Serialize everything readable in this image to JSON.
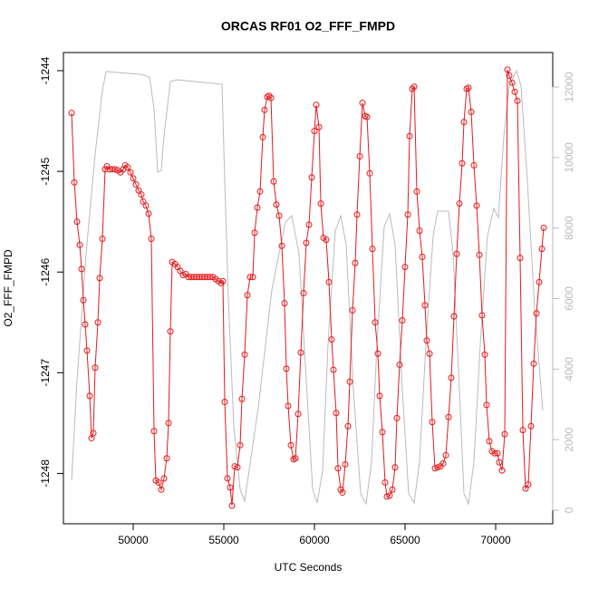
{
  "chart_data": {
    "type": "line",
    "title": "ORCAS RF01 O2_FFF_FMPD",
    "x_label": "UTC Seconds",
    "y_label": "O2_FFF_FMPD",
    "xlim": [
      46150,
      73150
    ],
    "ylim": [
      -1248.5,
      -1243.82
    ],
    "y2lim": [
      -386,
      12977
    ],
    "xticks": [
      50000,
      55000,
      60000,
      65000,
      70000
    ],
    "yticks": [
      -1248,
      -1247,
      -1246,
      -1245,
      -1244
    ],
    "y2ticks": [
      0,
      2000,
      4000,
      6000,
      8000,
      10000,
      12000
    ],
    "series": [
      {
        "color": "#bbbbbb",
        "axis": "y2",
        "markers": false,
        "x": [
          46600,
          46900,
          47400,
          47900,
          48300,
          48500,
          49150,
          50400,
          50900,
          51150,
          51350,
          51550,
          51700,
          52050,
          52400,
          53400,
          54900,
          55050,
          55250,
          55550,
          55900,
          56150,
          56900,
          57650,
          58400,
          58750,
          59150,
          59550,
          59900,
          60150,
          60450,
          60750,
          61150,
          61450,
          61750,
          62150,
          62550,
          62850,
          63150,
          63450,
          63850,
          64150,
          64450,
          64850,
          65200,
          65500,
          65800,
          66150,
          66550,
          66800,
          67400,
          67650,
          68000,
          68250,
          68500,
          68800,
          69150,
          69550,
          69900,
          70150,
          70450,
          70750,
          71150,
          71400,
          71750,
          72150,
          72600
        ],
        "values": [
          848,
          3675,
          7272,
          10098,
          11897,
          12437,
          12411,
          12360,
          12283,
          11383,
          9584,
          9636,
          10612,
          12154,
          12206,
          12154,
          12077,
          9327,
          5987,
          2390,
          591,
          257,
          2904,
          6244,
          8171,
          8351,
          7272,
          3675,
          591,
          206,
          1105,
          4702,
          7914,
          8351,
          7529,
          3418,
          463,
          180,
          1362,
          4702,
          8042,
          8403,
          7529,
          3418,
          463,
          206,
          1362,
          4702,
          7786,
          8480,
          8480,
          7272,
          3418,
          463,
          180,
          1362,
          4702,
          7786,
          8557,
          8300,
          10612,
          12026,
          12462,
          12026,
          9327,
          5730,
          2827
        ]
      },
      {
        "color": "#e41a1c",
        "axis": "y",
        "markers": true,
        "x": [
          46600,
          46750,
          46900,
          47050,
          47150,
          47250,
          47350,
          47450,
          47600,
          47700,
          47800,
          47900,
          48050,
          48150,
          48300,
          48450,
          48550,
          48700,
          48850,
          49000,
          49150,
          49300,
          49450,
          49550,
          49700,
          49850,
          50000,
          50150,
          50300,
          50450,
          50550,
          50700,
          50850,
          51000,
          51150,
          51250,
          51400,
          51550,
          51700,
          51850,
          51950,
          52050,
          52150,
          52300,
          52450,
          52600,
          52750,
          52900,
          53050,
          53200,
          53350,
          53500,
          53650,
          53800,
          53950,
          54100,
          54250,
          54400,
          54550,
          54700,
          54850,
          54950,
          55050,
          55200,
          55350,
          55450,
          55600,
          55750,
          55900,
          56000,
          56150,
          56300,
          56450,
          56600,
          56700,
          56850,
          57000,
          57150,
          57250,
          57400,
          57500,
          57600,
          57750,
          57900,
          58050,
          58200,
          58350,
          58450,
          58550,
          58700,
          58850,
          58950,
          59100,
          59250,
          59400,
          59550,
          59700,
          59850,
          60000,
          60100,
          60250,
          60350,
          60500,
          60650,
          60800,
          60950,
          61050,
          61200,
          61300,
          61450,
          61550,
          61700,
          61850,
          61950,
          62100,
          62250,
          62350,
          62500,
          62650,
          62800,
          62900,
          63050,
          63200,
          63350,
          63500,
          63600,
          63750,
          63900,
          64000,
          64150,
          64300,
          64450,
          64550,
          64700,
          64850,
          65000,
          65150,
          65250,
          65400,
          65500,
          65650,
          65800,
          65950,
          66100,
          66200,
          66350,
          66500,
          66650,
          66800,
          66950,
          67100,
          67250,
          67400,
          67550,
          67700,
          67850,
          68000,
          68150,
          68250,
          68400,
          68500,
          68650,
          68800,
          68950,
          69100,
          69250,
          69400,
          69500,
          69650,
          69800,
          69950,
          70100,
          70200,
          70350,
          70500,
          70650,
          70750,
          70900,
          71050,
          71200,
          71350,
          71500,
          71650,
          71800,
          71950,
          72100,
          72250,
          72400,
          72550,
          72650
        ],
        "values": [
          -1244.42,
          -1245.11,
          -1245.5,
          -1245.73,
          -1245.97,
          -1246.28,
          -1246.52,
          -1246.78,
          -1247.23,
          -1247.65,
          -1247.6,
          -1246.95,
          -1246.5,
          -1246.06,
          -1245.67,
          -1244.98,
          -1244.95,
          -1244.98,
          -1244.98,
          -1244.98,
          -1244.99,
          -1245.01,
          -1244.98,
          -1244.94,
          -1244.96,
          -1245.01,
          -1245.07,
          -1245.13,
          -1245.19,
          -1245.23,
          -1245.3,
          -1245.34,
          -1245.42,
          -1245.67,
          -1247.58,
          -1248.07,
          -1248.09,
          -1248.16,
          -1248.05,
          -1247.85,
          -1247.5,
          -1246.59,
          -1245.9,
          -1245.92,
          -1245.95,
          -1245.99,
          -1246.03,
          -1246.02,
          -1246.05,
          -1246.05,
          -1246.05,
          -1246.05,
          -1246.05,
          -1246.05,
          -1246.05,
          -1246.05,
          -1246.05,
          -1246.05,
          -1246.07,
          -1246.09,
          -1246.11,
          -1246.09,
          -1247.29,
          -1248.05,
          -1248.14,
          -1248.32,
          -1247.93,
          -1247.94,
          -1247.72,
          -1247.26,
          -1246.82,
          -1246.23,
          -1246.05,
          -1246.05,
          -1245.61,
          -1245.36,
          -1245.2,
          -1244.66,
          -1244.39,
          -1244.26,
          -1244.25,
          -1244.27,
          -1245.1,
          -1245.33,
          -1245.44,
          -1245.74,
          -1246.31,
          -1246.96,
          -1247.33,
          -1247.72,
          -1247.86,
          -1247.85,
          -1247.41,
          -1246.8,
          -1246.21,
          -1245.71,
          -1245.53,
          -1245.06,
          -1244.6,
          -1244.34,
          -1244.56,
          -1245.32,
          -1245.66,
          -1245.68,
          -1246.1,
          -1246.67,
          -1246.97,
          -1247.4,
          -1247.95,
          -1248.16,
          -1248.19,
          -1247.91,
          -1247.53,
          -1247.09,
          -1246.38,
          -1245.91,
          -1245.43,
          -1244.85,
          -1244.32,
          -1244.45,
          -1244.46,
          -1245.02,
          -1245.77,
          -1246.5,
          -1246.81,
          -1247.23,
          -1247.59,
          -1248.09,
          -1248.23,
          -1248.22,
          -1248.16,
          -1247.94,
          -1247.45,
          -1246.92,
          -1246.48,
          -1245.95,
          -1245.43,
          -1244.65,
          -1244.18,
          -1244.16,
          -1245.2,
          -1245.59,
          -1245.85,
          -1246.33,
          -1246.68,
          -1246.81,
          -1247.49,
          -1247.95,
          -1247.94,
          -1247.93,
          -1247.9,
          -1247.82,
          -1247.44,
          -1247.05,
          -1246.44,
          -1245.82,
          -1245.32,
          -1244.92,
          -1244.51,
          -1244.18,
          -1244.17,
          -1244.41,
          -1244.94,
          -1245.34,
          -1245.83,
          -1246.43,
          -1246.82,
          -1247.32,
          -1247.68,
          -1247.78,
          -1247.8,
          -1247.8,
          -1247.89,
          -1247.97,
          -1247.61,
          -1243.99,
          -1244.05,
          -1244.12,
          -1244.21,
          -1244.3,
          -1245.86,
          -1247.57,
          -1248.15,
          -1248.11,
          -1247.53,
          -1246.91,
          -1246.41,
          -1246.1,
          -1245.77,
          -1245.56
        ]
      }
    ]
  }
}
